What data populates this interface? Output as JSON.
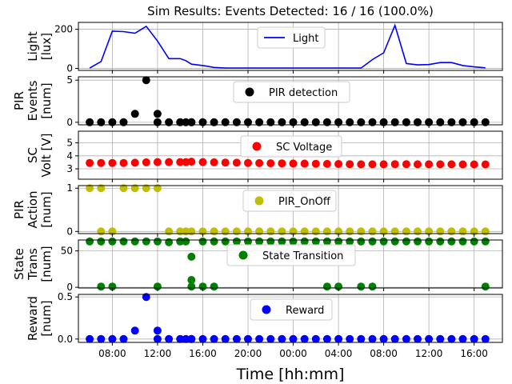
{
  "chart_data": {
    "title": "Sim Results: Events Detected: 16 / 16 (100.0%)",
    "xlabel": "Time [hh:mm]",
    "x_tick_labels": [
      "08:00",
      "12:00",
      "16:00",
      "20:00",
      "00:00",
      "04:00",
      "08:00",
      "12:00",
      "16:00"
    ],
    "x_tick_hours": [
      8,
      12,
      16,
      20,
      24,
      28,
      32,
      36,
      40
    ],
    "x_range_hours": [
      5,
      42.5
    ],
    "grid": true,
    "time_hours": [
      6,
      7,
      8,
      9,
      10,
      11,
      12,
      13,
      14,
      14.5,
      15,
      16,
      17,
      18,
      19,
      20,
      21,
      22,
      23,
      24,
      25,
      26,
      27,
      28,
      29,
      30,
      31,
      32,
      33,
      34,
      35,
      36,
      37,
      38,
      39,
      40,
      41
    ],
    "panels": [
      {
        "type": "line",
        "ylabel": [
          "Light",
          "[lux]"
        ],
        "ylim": [
          -10,
          235
        ],
        "yticks": [
          0,
          200
        ],
        "color": "#0000ff",
        "legend": "Light",
        "x": [
          6,
          7,
          8,
          9,
          10,
          11,
          12,
          13,
          14,
          14.5,
          15,
          16,
          17,
          18,
          19,
          20,
          21,
          22,
          23,
          24,
          25,
          26,
          27,
          28,
          29,
          30,
          31,
          32,
          33,
          34,
          35,
          36,
          37,
          38,
          39,
          40,
          41
        ],
        "values": [
          2,
          35,
          190,
          188,
          180,
          215,
          140,
          50,
          50,
          40,
          22,
          15,
          5,
          2,
          2,
          2,
          2,
          2,
          2,
          2,
          2,
          2,
          2,
          2,
          2,
          2,
          45,
          80,
          220,
          25,
          18,
          20,
          30,
          30,
          15,
          8,
          3
        ]
      },
      {
        "type": "scatter",
        "ylabel": [
          "PIR",
          "Events",
          "[num]"
        ],
        "ylim": [
          -0.3,
          5.4
        ],
        "yticks": [
          0,
          5
        ],
        "color": "#000000",
        "legend": "PIR detection",
        "x": [
          6,
          7,
          8,
          9,
          10,
          11,
          12,
          12,
          13,
          14,
          14.5,
          15,
          15,
          16,
          17,
          18,
          19,
          20,
          21,
          22,
          23,
          24,
          25,
          26,
          27,
          28,
          29,
          30,
          31,
          32,
          33,
          34,
          35,
          36,
          37,
          38,
          39,
          40,
          41
        ],
        "values": [
          0,
          0,
          0,
          0,
          1,
          5,
          1,
          0,
          0,
          0,
          0,
          0,
          0,
          0,
          0,
          0,
          0,
          0,
          0,
          0,
          0,
          0,
          0,
          0,
          0,
          0,
          0,
          0,
          0,
          0,
          0,
          0,
          0,
          0,
          0,
          0,
          0,
          0,
          0
        ]
      },
      {
        "type": "scatter",
        "ylabel": [
          "SC",
          "Volt [V]"
        ],
        "ylim": [
          2.2,
          5.9
        ],
        "yticks": [
          3,
          4,
          5
        ],
        "color": "#ff0000",
        "legend": "SC Voltage",
        "x": [
          6,
          7,
          8,
          9,
          10,
          11,
          12,
          13,
          14,
          14.5,
          15,
          16,
          17,
          18,
          19,
          20,
          21,
          22,
          23,
          24,
          25,
          26,
          27,
          28,
          29,
          30,
          31,
          32,
          33,
          34,
          35,
          36,
          37,
          38,
          39,
          40,
          41
        ],
        "values": [
          3.45,
          3.45,
          3.45,
          3.45,
          3.47,
          3.5,
          3.52,
          3.52,
          3.52,
          3.52,
          3.55,
          3.52,
          3.5,
          3.48,
          3.47,
          3.45,
          3.44,
          3.43,
          3.42,
          3.41,
          3.4,
          3.39,
          3.38,
          3.37,
          3.36,
          3.35,
          3.35,
          3.35,
          3.36,
          3.36,
          3.35,
          3.35,
          3.35,
          3.35,
          3.34,
          3.34,
          3.34
        ]
      },
      {
        "type": "scatter",
        "ylabel": [
          "PIR",
          "Action",
          "[num]"
        ],
        "ylim": [
          -0.05,
          1.06
        ],
        "yticks": [
          0,
          1
        ],
        "color": "#bfbf00",
        "legend": "PIR_OnOff",
        "x": [
          6,
          7,
          7,
          8,
          9,
          10,
          11,
          12,
          13,
          14,
          14.5,
          15,
          16,
          17,
          18,
          19,
          20,
          21,
          22,
          23,
          24,
          25,
          26,
          27,
          28,
          29,
          30,
          31,
          32,
          33,
          34,
          35,
          36,
          37,
          38,
          39,
          40,
          41
        ],
        "values": [
          1,
          1,
          0,
          0,
          1,
          1,
          1,
          1,
          0,
          0,
          0,
          0,
          0,
          0,
          0,
          0,
          0,
          0,
          0,
          0,
          0,
          0,
          0,
          0,
          0,
          0,
          0,
          0,
          0,
          0,
          0,
          0,
          0,
          0,
          0,
          0,
          0,
          0
        ]
      },
      {
        "type": "scatter",
        "ylabel": [
          "State",
          "Trans",
          "[num]"
        ],
        "ylim": [
          -1,
          65
        ],
        "yticks": [
          0,
          50
        ],
        "color": "#008000",
        "legend": "State Transition",
        "x": [
          6,
          7,
          7,
          8,
          8,
          9,
          10,
          11,
          12,
          12,
          13,
          14,
          14.5,
          15,
          15,
          15,
          16,
          16,
          17,
          17,
          18,
          19,
          20,
          21,
          22,
          23,
          24,
          25,
          26,
          27,
          27,
          28,
          28,
          29,
          30,
          30,
          31,
          31,
          32,
          33,
          34,
          35,
          36,
          37,
          38,
          39,
          40,
          41,
          41
        ],
        "values": [
          63,
          63,
          1,
          1,
          63,
          63,
          63,
          63,
          1,
          63,
          62,
          63,
          63,
          42,
          10,
          1,
          63,
          1,
          63,
          1,
          63,
          63,
          63,
          63,
          63,
          63,
          63,
          63,
          63,
          1,
          63,
          1,
          63,
          63,
          1,
          63,
          1,
          63,
          63,
          63,
          63,
          63,
          63,
          63,
          63,
          63,
          63,
          1,
          63
        ]
      },
      {
        "type": "scatter",
        "ylabel": [
          "Reward",
          "[num]"
        ],
        "ylim": [
          -0.04,
          0.53
        ],
        "yticks": [
          0.0,
          0.5
        ],
        "color": "#0000ff",
        "legend": "Reward",
        "x": [
          6,
          7,
          8,
          9,
          10,
          11,
          12,
          12,
          13,
          14,
          14.5,
          15,
          15,
          16,
          17,
          18,
          19,
          20,
          21,
          22,
          23,
          24,
          25,
          26,
          27,
          28,
          29,
          30,
          31,
          32,
          33,
          34,
          35,
          36,
          37,
          38,
          39,
          40,
          41
        ],
        "values": [
          0,
          0,
          0,
          0,
          0.1,
          0.5,
          0.1,
          0,
          0,
          0,
          0,
          0,
          0,
          0,
          0,
          0,
          0,
          0,
          0,
          0,
          0,
          0,
          0,
          0,
          0,
          0,
          0,
          0,
          0,
          0,
          0,
          0,
          0,
          0,
          0,
          0,
          0,
          0,
          0
        ]
      }
    ]
  }
}
